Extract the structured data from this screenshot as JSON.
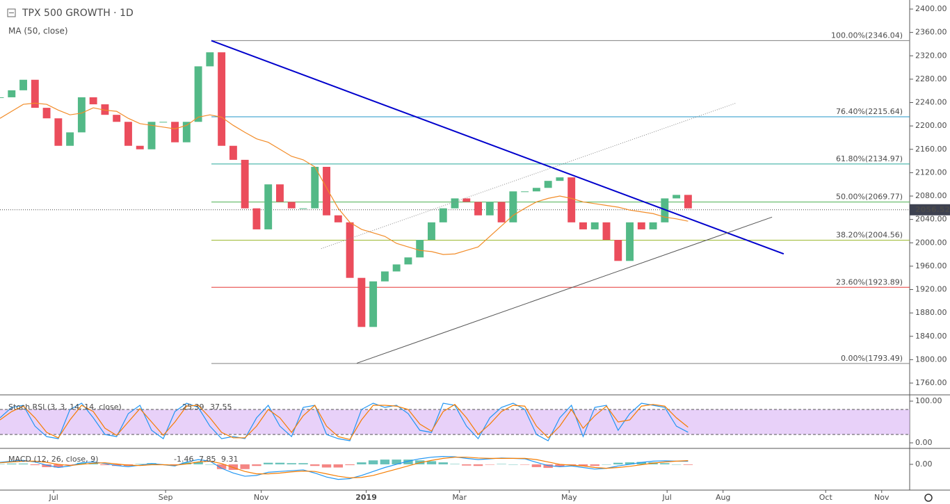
{
  "chart_data": {
    "type": "candlestick",
    "title": "TPX 500 GROWTH · 1D",
    "indicator_label": "MA (50, close)",
    "up_color": "#53b987",
    "down_color": "#eb4d5c",
    "xlim": [
      0,
      390
    ],
    "xticks": [
      {
        "value": 23,
        "label": "Jul"
      },
      {
        "value": 71,
        "label": "Sep"
      },
      {
        "value": 112,
        "label": "Nov"
      },
      {
        "value": 157,
        "label": "2019"
      },
      {
        "value": 197,
        "label": "Mar"
      },
      {
        "value": 244,
        "label": "May"
      },
      {
        "value": 286,
        "label": "Jul"
      },
      {
        "value": 310,
        "label": "Aug"
      },
      {
        "value": 354,
        "label": "Oct"
      },
      {
        "value": 378,
        "label": "Nov"
      }
    ],
    "ylim": [
      1739.8,
      2415.5
    ],
    "yticks": [
      {
        "value": 1760,
        "label": "1760.00"
      },
      {
        "value": 1800,
        "label": "1800.00"
      },
      {
        "value": 1840,
        "label": "1840.00"
      },
      {
        "value": 1880,
        "label": "1880.00"
      },
      {
        "value": 1920,
        "label": "1920.00"
      },
      {
        "value": 1960,
        "label": "1960.00"
      },
      {
        "value": 2000,
        "label": "2000.00"
      },
      {
        "value": 2040,
        "label": "2040.00"
      },
      {
        "value": 2080,
        "label": "2080.00"
      },
      {
        "value": 2120,
        "label": "2120.00"
      },
      {
        "value": 2160,
        "label": "2160.00"
      },
      {
        "value": 2200,
        "label": "2200.00"
      },
      {
        "value": 2240,
        "label": "2240.00"
      },
      {
        "value": 2280,
        "label": "2280.00"
      },
      {
        "value": 2320,
        "label": "2320.00"
      },
      {
        "value": 2360,
        "label": "2360.00"
      },
      {
        "value": 2400,
        "label": "2400.00"
      }
    ],
    "x": [
      0,
      5,
      10,
      15,
      20,
      25,
      30,
      35,
      40,
      45,
      50,
      55,
      60,
      65,
      70,
      75,
      80,
      85,
      90,
      95,
      100,
      105,
      110,
      115,
      120,
      125,
      130,
      135,
      140,
      145,
      150,
      155,
      160,
      165,
      170,
      175,
      180,
      185,
      190,
      195,
      200,
      205,
      210,
      215,
      220,
      225,
      230,
      235,
      240,
      245,
      250,
      255,
      260,
      265,
      270,
      275,
      280,
      285,
      290,
      295
    ],
    "values": [
      2249,
      2261,
      2279,
      2231,
      2213,
      2166,
      2189,
      2249,
      2237,
      2219,
      2207,
      2166,
      2160,
      2207,
      2207,
      2172,
      2207,
      2302,
      2326,
      2166,
      2142,
      2059,
      2023,
      2100,
      2070,
      2059,
      2059,
      2130,
      2047,
      2035,
      1940,
      1856,
      1934,
      1951,
      1963,
      1975,
      2005,
      2035,
      2059,
      2076,
      2070,
      2047,
      2070,
      2035,
      2088,
      2088,
      2094,
      2106,
      2112,
      2035,
      2023,
      2035,
      2005,
      1969,
      2035,
      2023,
      2035,
      2076,
      2082,
      2059
    ],
    "ma": {
      "color": "#f28c28",
      "values": [
        2213,
        2225,
        2237,
        2239,
        2237,
        2227,
        2219,
        2222,
        2231,
        2227,
        2225,
        2213,
        2204,
        2201,
        2198,
        2195,
        2201,
        2215,
        2219,
        2215,
        2201,
        2189,
        2178,
        2172,
        2160,
        2148,
        2142,
        2130,
        2094,
        2059,
        2035,
        2023,
        2017,
        2011,
        1999,
        1993,
        1987,
        1985,
        1980,
        1981,
        1987,
        1993,
        2011,
        2029,
        2047,
        2059,
        2070,
        2076,
        2080,
        2076,
        2070,
        2067,
        2064,
        2061,
        2056,
        2053,
        2050,
        2044,
        2041,
        2037
      ]
    },
    "last_price": 2056.52,
    "fib_levels": [
      {
        "label": "100.00%(2346.04)",
        "value": 2346.04,
        "color": "#808080"
      },
      {
        "label": "76.40%(2215.64)",
        "value": 2215.64,
        "color": "#2196c8"
      },
      {
        "label": "61.80%(2134.97)",
        "value": 2134.97,
        "color": "#26a69a"
      },
      {
        "label": "50.00%(2069.77)",
        "value": 2069.77,
        "color": "#4caf50"
      },
      {
        "label": "38.20%(2004.56)",
        "value": 2004.56,
        "color": "#9cb830"
      },
      {
        "label": "23.60%(1923.89)",
        "value": 1923.89,
        "color": "#e53935"
      },
      {
        "label": "0.00%(1793.49)",
        "value": 1793.49,
        "color": "#808080"
      }
    ],
    "trend_lines": [
      {
        "color": "#0000cc",
        "width": 2,
        "x": [
          90.6,
          336
        ],
        "values": [
          2346,
          1981
        ]
      },
      {
        "color": "#555555",
        "width": 1,
        "x": [
          153,
          331
        ],
        "values": [
          1794,
          2044
        ]
      },
      {
        "color": "#888888",
        "width": 1,
        "dash": true,
        "x": [
          137.7,
          315.5
        ],
        "values": [
          1990,
          2239
        ]
      }
    ],
    "stoch": {
      "title": "Stoch RSI (3, 3, 14, 14, close)",
      "ylim": [
        -13.3,
        111.7
      ],
      "yticks": [
        {
          "value": 100,
          "label": "100.00"
        },
        {
          "value": 0,
          "label": "0.00"
        }
      ],
      "bands": [
        20,
        80
      ],
      "band_color": "#d9b3f5",
      "k": {
        "color": "#2196f3",
        "values": [
          60,
          85,
          90,
          40,
          15,
          10,
          80,
          95,
          60,
          20,
          15,
          70,
          90,
          30,
          10,
          75,
          95,
          85,
          40,
          10,
          15,
          10,
          60,
          90,
          40,
          15,
          85,
          90,
          20,
          10,
          5,
          80,
          95,
          85,
          90,
          70,
          30,
          25,
          95,
          90,
          40,
          10,
          60,
          85,
          95,
          80,
          20,
          5,
          60,
          90,
          15,
          85,
          90,
          30,
          70,
          95,
          90,
          85,
          40,
          25.39
        ]
      },
      "d": {
        "color": "#f57c00",
        "values": [
          55,
          75,
          88,
          60,
          25,
          12,
          55,
          90,
          75,
          35,
          18,
          50,
          82,
          50,
          18,
          50,
          88,
          90,
          60,
          25,
          12,
          12,
          40,
          80,
          60,
          25,
          65,
          90,
          40,
          15,
          8,
          55,
          90,
          90,
          88,
          80,
          45,
          28,
          75,
          92,
          60,
          20,
          45,
          75,
          90,
          88,
          40,
          12,
          40,
          80,
          35,
          65,
          88,
          50,
          55,
          88,
          92,
          88,
          60,
          37.55
        ]
      }
    },
    "macd": {
      "title": "MACD (12, 26, close, 9)",
      "ylim": [
        -65,
        35
      ],
      "yticks": [
        {
          "value": 0,
          "label": "0.00"
        }
      ],
      "hist": {
        "up_color": "#26a69a",
        "down_color": "#ef5350",
        "values": [
          1,
          2,
          2,
          -2,
          -7,
          -8,
          -1,
          4,
          3,
          -2,
          -4,
          -4,
          1,
          3,
          0,
          -2,
          5,
          6,
          0,
          -12,
          -14,
          -12,
          -4,
          4,
          4,
          3,
          3,
          -4,
          -8,
          -8,
          -2,
          5,
          10,
          12,
          12,
          12,
          10,
          8,
          5,
          1,
          -3,
          -4,
          -1,
          1,
          0,
          -1,
          -7,
          -9,
          -6,
          -2,
          -4,
          -4,
          0,
          4,
          5,
          6,
          5,
          3,
          0,
          -1.46
        ]
      },
      "macd": {
        "color": "#2196f3",
        "values": [
          5,
          8,
          10,
          6,
          -2,
          -8,
          -4,
          4,
          6,
          2,
          -3,
          -6,
          -2,
          2,
          -1,
          -4,
          6,
          12,
          8,
          -10,
          -22,
          -30,
          -28,
          -20,
          -18,
          -16,
          -14,
          -22,
          -32,
          -38,
          -36,
          -28,
          -18,
          -8,
          0,
          8,
          14,
          18,
          20,
          19,
          15,
          12,
          14,
          16,
          15,
          14,
          5,
          -3,
          -6,
          -4,
          -8,
          -12,
          -10,
          -4,
          0,
          5,
          8,
          9,
          8,
          7.85
        ]
      },
      "signal": {
        "color": "#f57c00",
        "values": [
          4,
          6,
          8,
          8,
          5,
          0,
          -3,
          0,
          3,
          4,
          1,
          -2,
          -3,
          -1,
          -1,
          -2,
          1,
          6,
          8,
          2,
          -8,
          -18,
          -24,
          -24,
          -22,
          -19,
          -17,
          -18,
          -24,
          -30,
          -34,
          -33,
          -28,
          -20,
          -12,
          -4,
          4,
          10,
          15,
          18,
          18,
          16,
          15,
          15,
          15,
          15,
          12,
          6,
          0,
          -2,
          -4,
          -8,
          -10,
          -8,
          -5,
          -1,
          3,
          6,
          8,
          9.31
        ]
      }
    }
  }
}
